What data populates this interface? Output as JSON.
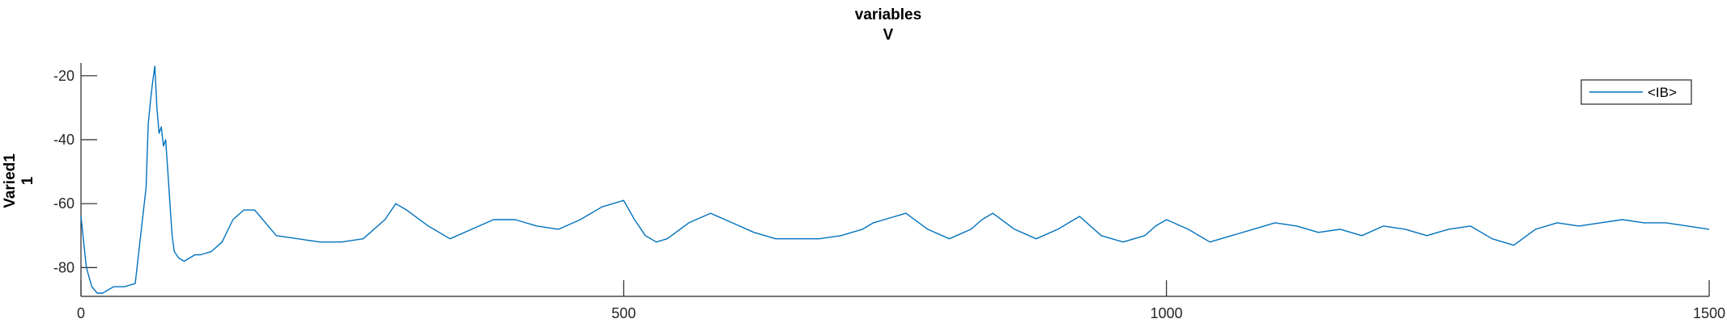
{
  "chart_data": {
    "type": "line",
    "title": [
      "variables",
      "V"
    ],
    "ylabel": [
      "Varied1",
      "1"
    ],
    "xlabel": "",
    "xlim": [
      0,
      1500
    ],
    "ylim": [
      -89,
      -16
    ],
    "xticks": [
      0,
      500,
      1000,
      1500
    ],
    "yticks": [
      -80,
      -60,
      -40,
      -20
    ],
    "xtick_labels": [
      "0",
      "500",
      "1000",
      "1500"
    ],
    "ytick_labels": [
      "-80",
      "-60",
      "-40",
      "-20"
    ],
    "grid": false,
    "legend_position": "top-right",
    "colors": {
      "series": "#0072BD",
      "axes": "#262626"
    },
    "series": [
      {
        "name": "<IB>",
        "x": [
          0,
          5,
          10,
          15,
          20,
          30,
          40,
          50,
          60,
          62,
          64,
          66,
          68,
          70,
          72,
          74,
          76,
          78,
          80,
          82,
          84,
          86,
          88,
          90,
          95,
          100,
          105,
          110,
          120,
          130,
          140,
          150,
          160,
          165,
          170,
          180,
          200,
          220,
          240,
          260,
          280,
          290,
          300,
          320,
          340,
          360,
          380,
          400,
          420,
          440,
          460,
          470,
          480,
          490,
          500,
          510,
          520,
          530,
          540,
          560,
          580,
          600,
          620,
          640,
          660,
          680,
          700,
          720,
          730,
          740,
          760,
          780,
          800,
          820,
          830,
          840,
          860,
          880,
          900,
          910,
          920,
          940,
          960,
          980,
          990,
          1000,
          1020,
          1040,
          1060,
          1080,
          1100,
          1120,
          1140,
          1160,
          1180,
          1200,
          1220,
          1240,
          1260,
          1280,
          1300,
          1320,
          1340,
          1360,
          1380,
          1400,
          1420,
          1440,
          1460,
          1480,
          1500
        ],
        "y": [
          -64,
          -80,
          -86,
          -88,
          -88,
          -86,
          -86,
          -85,
          -55,
          -35,
          -28,
          -22,
          -17,
          -30,
          -38,
          -36,
          -42,
          -40,
          -50,
          -60,
          -70,
          -75,
          -76,
          -77,
          -78,
          -77,
          -76,
          -76,
          -75,
          -72,
          -65,
          -62,
          -62,
          -64,
          -66,
          -70,
          -71,
          -72,
          -72,
          -71,
          -65,
          -60,
          -62,
          -67,
          -71,
          -68,
          -65,
          -65,
          -67,
          -68,
          -65,
          -63,
          -61,
          -60,
          -59,
          -65,
          -70,
          -72,
          -71,
          -66,
          -63,
          -66,
          -69,
          -71,
          -71,
          -71,
          -70,
          -68,
          -66,
          -65,
          -63,
          -68,
          -71,
          -68,
          -65,
          -63,
          -68,
          -71,
          -68,
          -66,
          -64,
          -70,
          -72,
          -70,
          -67,
          -65,
          -68,
          -72,
          -70,
          -68,
          -66,
          -67,
          -69,
          -68,
          -70,
          -67,
          -68,
          -70,
          -68,
          -67,
          -71,
          -73,
          -68,
          -66,
          -67,
          -66,
          -65,
          -66,
          -66,
          -67,
          -68
        ]
      }
    ]
  }
}
